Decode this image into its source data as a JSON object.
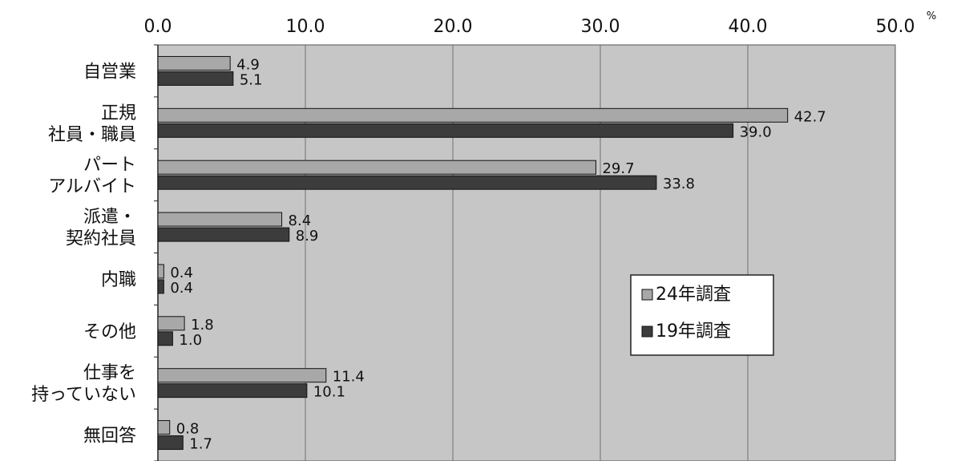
{
  "chart_data": {
    "type": "bar",
    "orientation": "horizontal",
    "categories": [
      [
        "自営業"
      ],
      [
        "正規",
        "社員・職員"
      ],
      [
        "パート",
        "アルバイト"
      ],
      [
        "派遣・",
        "契約社員"
      ],
      [
        "内職"
      ],
      [
        "その他"
      ],
      [
        "仕事を",
        "持っていない"
      ],
      [
        "無回答"
      ]
    ],
    "series": [
      {
        "name": "24年調査",
        "values": [
          4.9,
          42.7,
          29.7,
          8.4,
          0.4,
          1.8,
          11.4,
          0.8
        ],
        "value_labels": [
          "4.9",
          "42.7",
          "29.7",
          "8.4",
          "0.4",
          "1.8",
          "11.4",
          "0.8"
        ],
        "color": "#a8a8a8"
      },
      {
        "name": "19年調査",
        "values": [
          5.1,
          39.0,
          33.8,
          8.9,
          0.4,
          1.0,
          10.1,
          1.7
        ],
        "value_labels": [
          "5.1",
          "39.0",
          "33.8",
          "8.9",
          "0.4",
          "1.0",
          "10.1",
          "1.7"
        ],
        "color": "#3c3c3c"
      }
    ],
    "xlim": [
      0,
      50
    ],
    "x_ticks": [
      "0.0",
      "10.0",
      "20.0",
      "30.0",
      "40.0",
      "50.0"
    ],
    "x_unit": "%",
    "grid": "vertical",
    "legend_position": "right-middle",
    "plot_background": "#c6c6c6"
  }
}
